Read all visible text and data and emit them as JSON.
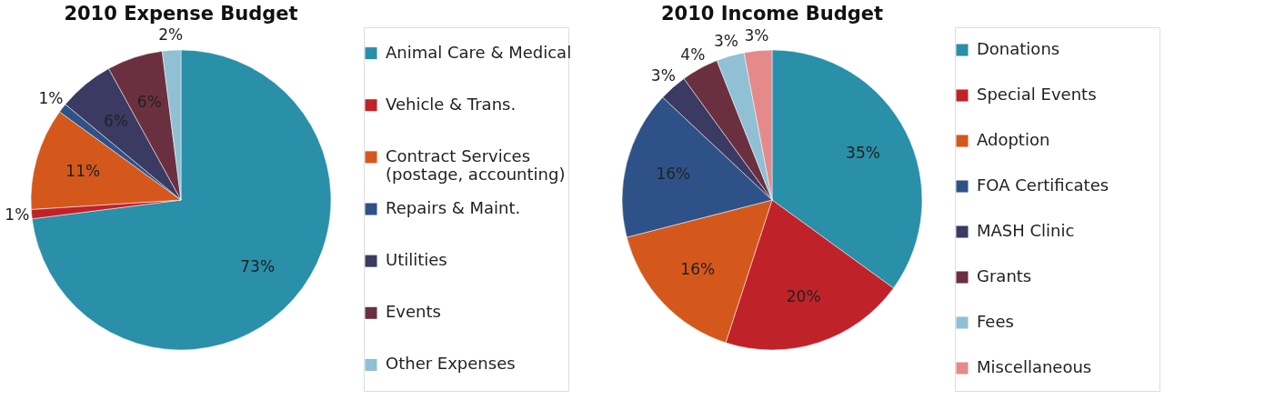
{
  "chart_data": [
    {
      "type": "pie",
      "title": "2010 Expense Budget",
      "categories": [
        "Animal Care & Medical",
        "Vehicle & Trans.",
        "Contract Services\n(postage, accounting)",
        "Repairs & Maint.",
        "Utilities",
        "Events",
        "Other Expenses"
      ],
      "values": [
        73,
        1,
        11,
        1,
        6,
        6,
        2
      ],
      "colors": [
        "#2a8fa8",
        "#c0222a",
        "#d4581c",
        "#2e5288",
        "#3b3a62",
        "#6b3040",
        "#8fc0d4"
      ],
      "value_labels": [
        "73%",
        "1%",
        "11%",
        "1%",
        "6%",
        "6%",
        "2%"
      ],
      "legend": "right"
    },
    {
      "type": "pie",
      "title": "2010 Income Budget",
      "categories": [
        "Donations",
        "Special Events",
        "Adoption",
        "FOA Certificates",
        "MASH Clinic",
        "Grants",
        "Fees",
        "Miscellaneous"
      ],
      "values": [
        35,
        20,
        16,
        16,
        3,
        4,
        3,
        3
      ],
      "colors": [
        "#2a8fa8",
        "#c0222a",
        "#d4581c",
        "#2e5288",
        "#3b3a62",
        "#6b3040",
        "#8fc0d4",
        "#e58a8a"
      ],
      "value_labels": [
        "35%",
        "20%",
        "16%",
        "16%",
        "3%",
        "4%",
        "3%",
        "3%"
      ],
      "legend": "right"
    }
  ]
}
